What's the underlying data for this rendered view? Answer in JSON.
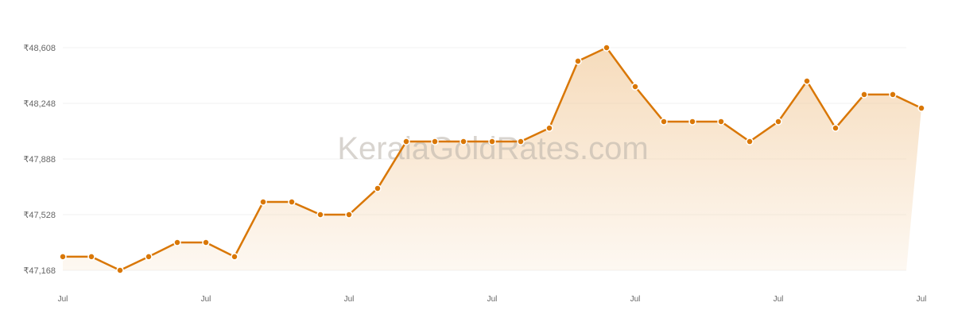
{
  "watermark": "KeralaGoldRates.com",
  "chart_data": {
    "type": "area",
    "title": "",
    "xlabel": "",
    "ylabel": "",
    "ylim": [
      47168,
      48608
    ],
    "yticks": [
      47168,
      47528,
      47888,
      48248,
      48608
    ],
    "ytick_labels": [
      "₹47,168",
      "₹47,528",
      "₹47,888",
      "₹48,248",
      "₹48,608"
    ],
    "xtick_labels": [
      "Jul",
      "Jul",
      "Jul",
      "Jul",
      "Jul",
      "Jul",
      "Jul"
    ],
    "xtick_index": [
      0,
      5,
      10,
      15,
      20,
      25,
      30
    ],
    "grid": true,
    "legend": "none",
    "colors": {
      "line": "#d97706",
      "fill": "#f0c48f",
      "grid": "#f2f2f2"
    },
    "values": [
      47256,
      47256,
      47168,
      47256,
      47348,
      47348,
      47256,
      47610,
      47610,
      47528,
      47528,
      47698,
      48001,
      48001,
      48001,
      48001,
      48001,
      48088,
      48521,
      48608,
      48356,
      48130,
      48130,
      48130,
      48001,
      48130,
      48392,
      48088,
      48305,
      48305,
      48217
    ]
  }
}
